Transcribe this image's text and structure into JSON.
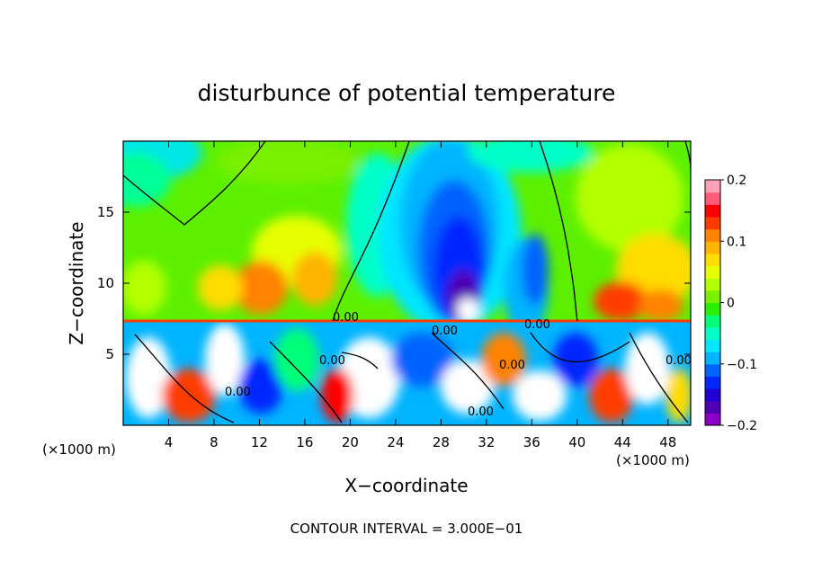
{
  "chart_data": {
    "type": "heatmap",
    "title": "disturbunce of potential temperature",
    "xlabel": "X−coordinate",
    "ylabel": "Z−coordinate",
    "x_unit_label": "(×1000 m)",
    "z_unit_label": "(×1000 m)",
    "footer": "CONTOUR INTERVAL = 3.000E−01",
    "xlim": [
      0,
      50
    ],
    "ylim": [
      0,
      20
    ],
    "x_ticks": [
      "4",
      "8",
      "12",
      "16",
      "20",
      "24",
      "28",
      "32",
      "36",
      "40",
      "44",
      "48"
    ],
    "y_ticks": [
      "5",
      "10",
      "15"
    ],
    "colorbar": {
      "range": [
        -0.2,
        0.2
      ],
      "tick_labels": [
        "0.2",
        "0.1",
        "0",
        "−0.1",
        "−0.2"
      ],
      "tick_values": [
        0.2,
        0.1,
        0,
        -0.1,
        -0.2
      ],
      "colors": [
        "#8c00c8",
        "#5000b4",
        "#1e00d2",
        "#0028ff",
        "#0064ff",
        "#00b4ff",
        "#00e6ff",
        "#00ffc8",
        "#00ff78",
        "#28f000",
        "#78f000",
        "#b4ff00",
        "#e6ff00",
        "#ffdc00",
        "#ffb400",
        "#ff8200",
        "#ff3c00",
        "#ff0000",
        "#ff5a78",
        "#ffa0b4"
      ]
    },
    "contour_labels": [
      "0.00",
      "0.00",
      "0.00",
      "0.00",
      "0.00",
      "0.00",
      "0.00",
      "0.00"
    ]
  }
}
